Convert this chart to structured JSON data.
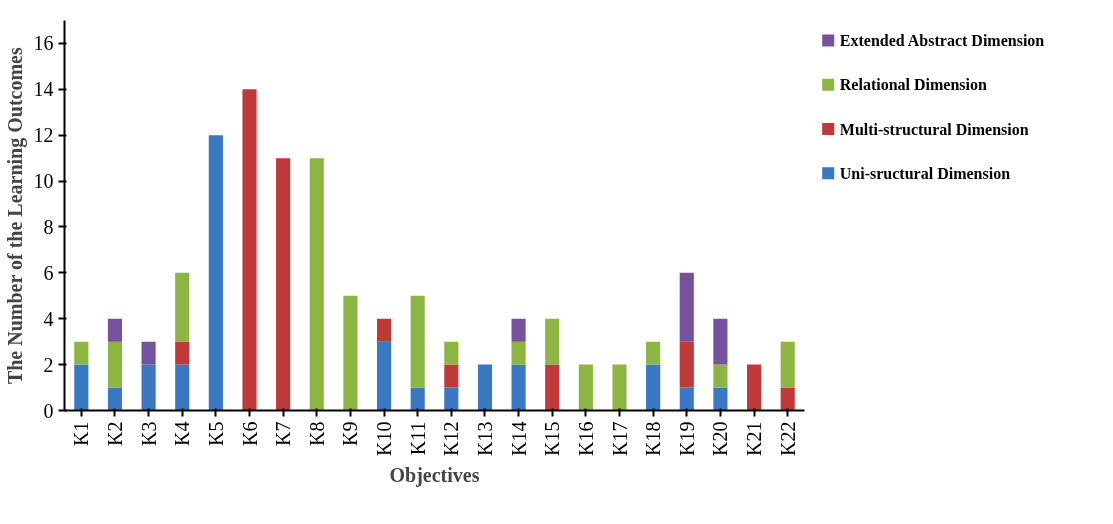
{
  "chart_data": {
    "type": "bar",
    "stacked": true,
    "xlabel": "Objectives",
    "ylabel": "The Number of the Learning Outcomes",
    "categories": [
      "K1",
      "K2",
      "K3",
      "K4",
      "K5",
      "K6",
      "K7",
      "K8",
      "K9",
      "K10",
      "K11",
      "K12",
      "K13",
      "K14",
      "K15",
      "K16",
      "K17",
      "K18",
      "K19",
      "K20",
      "K21",
      "K22"
    ],
    "series": [
      {
        "name": "Uni-sructural Dimension",
        "color": "#3a78c3",
        "values": [
          2,
          1,
          2,
          2,
          12,
          0,
          0,
          0,
          0,
          3,
          1,
          1,
          2,
          2,
          0,
          0,
          0,
          2,
          1,
          1,
          0,
          0
        ]
      },
      {
        "name": "Multi-structural Dimension",
        "color": "#c0393a",
        "values": [
          0,
          0,
          0,
          1,
          0,
          14,
          11,
          0,
          0,
          1,
          0,
          1,
          0,
          0,
          2,
          0,
          0,
          0,
          2,
          0,
          2,
          1
        ]
      },
      {
        "name": "Relational Dimension",
        "color": "#8db543",
        "values": [
          1,
          2,
          0,
          3,
          0,
          0,
          0,
          11,
          5,
          0,
          4,
          1,
          0,
          1,
          2,
          2,
          2,
          1,
          0,
          1,
          0,
          2
        ]
      },
      {
        "name": "Extended Abstract Dimension",
        "color": "#76529e",
        "values": [
          0,
          1,
          1,
          0,
          0,
          0,
          0,
          0,
          0,
          0,
          0,
          0,
          0,
          1,
          0,
          0,
          0,
          0,
          3,
          2,
          0,
          0
        ]
      }
    ],
    "ylim": [
      0,
      17
    ],
    "yticks": [
      0,
      2,
      4,
      6,
      8,
      10,
      12,
      14,
      16
    ],
    "grid": false,
    "legend": "right"
  }
}
